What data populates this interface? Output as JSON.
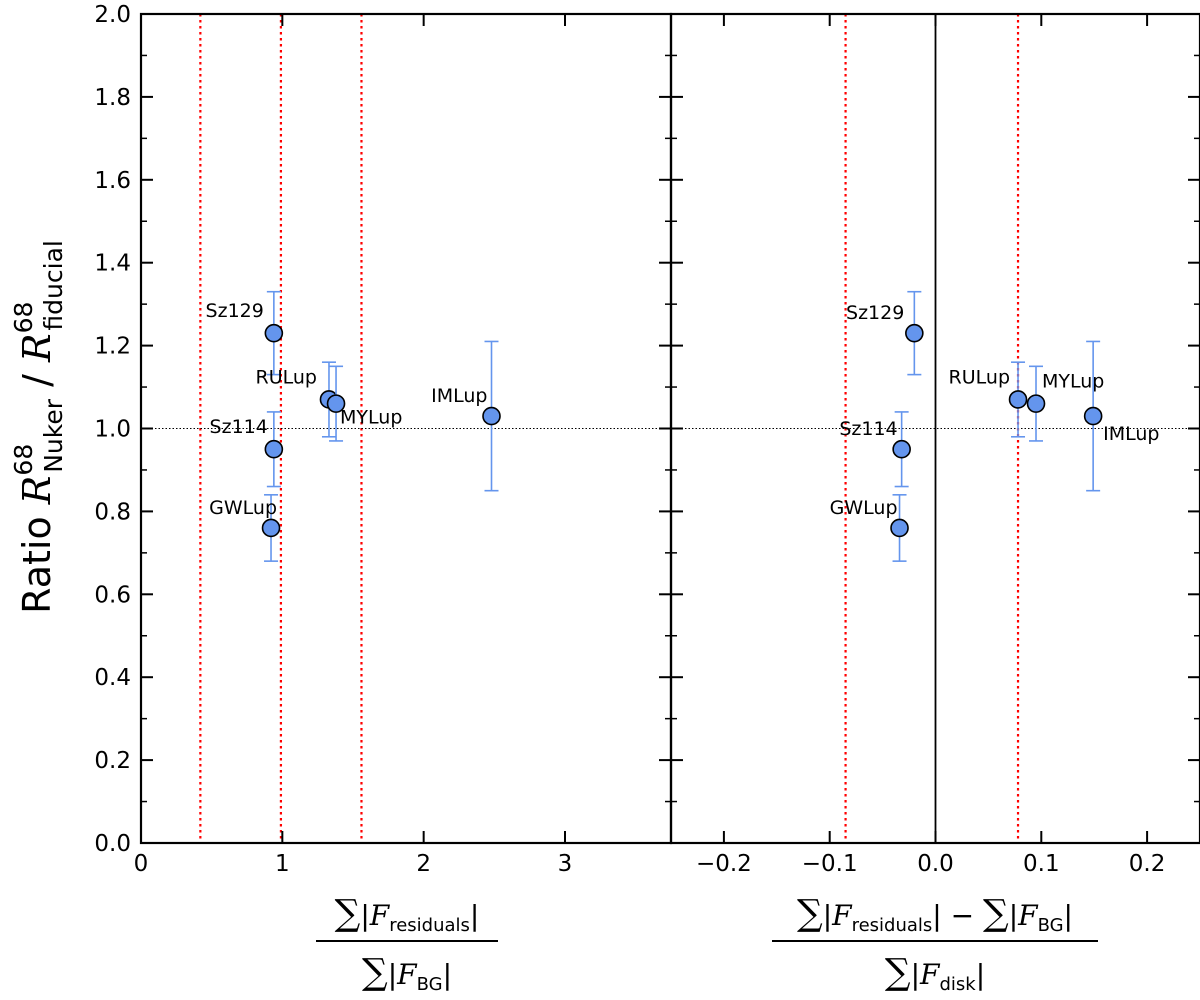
{
  "chart_data": [
    {
      "type": "scatter",
      "panel": "left",
      "ylabel_main": "Ratio ",
      "ylabel_num_var": "R",
      "ylabel_num_sup": "68",
      "ylabel_num_sub": "Nuker",
      "ylabel_sep": " / ",
      "ylabel_den_var": "R",
      "ylabel_den_sup": "68",
      "ylabel_den_sub": "fiducial",
      "xlabel": {
        "num_sum": "∑",
        "num_bar_l": "|",
        "num_var": "F",
        "num_sub": "residuals",
        "num_bar_r": "|",
        "den_sum": "∑",
        "den_bar_l": "|",
        "den_var": "F",
        "den_sub": "BG",
        "den_bar_r": "|"
      },
      "xlim": [
        0,
        3.75
      ],
      "ylim": [
        0,
        2.0
      ],
      "xticks": [
        0,
        1,
        2,
        3
      ],
      "xtick_labels": [
        "0",
        "1",
        "2",
        "3"
      ],
      "yticks": [
        0.0,
        0.2,
        0.4,
        0.6,
        0.8,
        1.0,
        1.2,
        1.4,
        1.6,
        1.8,
        2.0
      ],
      "ytick_labels": [
        "0.0",
        "0.2",
        "0.4",
        "0.6",
        "0.8",
        "1.0",
        "1.2",
        "1.4",
        "1.6",
        "1.8",
        "2.0"
      ],
      "vlines_dotted_red": [
        0.42,
        0.99,
        1.56
      ],
      "hline_dotted": 1.0,
      "points": [
        {
          "name": "Sz129",
          "x": 0.94,
          "y": 1.23,
          "err_lo": 0.1,
          "err_hi": 0.1,
          "label_anchor": "end",
          "label_dx": -10,
          "label_dy": -16
        },
        {
          "name": "RULup",
          "x": 1.33,
          "y": 1.07,
          "err_lo": 0.09,
          "err_hi": 0.09,
          "label_anchor": "end",
          "label_dx": -12,
          "label_dy": -16
        },
        {
          "name": "MYLup",
          "x": 1.38,
          "y": 1.06,
          "err_lo": 0.09,
          "err_hi": 0.09,
          "label_anchor": "start",
          "label_dx": 4,
          "label_dy": 20
        },
        {
          "name": "IMLup",
          "x": 2.48,
          "y": 1.03,
          "err_lo": 0.18,
          "err_hi": 0.18,
          "label_anchor": "end",
          "label_dx": -4,
          "label_dy": -14
        },
        {
          "name": "Sz114",
          "x": 0.94,
          "y": 0.95,
          "err_lo": 0.09,
          "err_hi": 0.09,
          "label_anchor": "end",
          "label_dx": -6,
          "label_dy": -16
        },
        {
          "name": "GWLup",
          "x": 0.92,
          "y": 0.76,
          "err_lo": 0.08,
          "err_hi": 0.08,
          "label_anchor": "end",
          "label_dx": 6,
          "label_dy": -14
        }
      ]
    },
    {
      "type": "scatter",
      "panel": "right",
      "xlabel": {
        "num_sum1": "∑",
        "num_bar_l1": "|",
        "num_var1": "F",
        "num_sub1": "residuals",
        "num_bar_r1": "|",
        "num_minus": " − ",
        "num_sum2": "∑",
        "num_bar_l2": "|",
        "num_var2": "F",
        "num_sub2": "BG",
        "num_bar_r2": "|",
        "den_sum": "∑",
        "den_bar_l": "|",
        "den_var": "F",
        "den_sub": "disk",
        "den_bar_r": "|"
      },
      "xlim": [
        -0.25,
        0.25
      ],
      "ylim": [
        0,
        2.0
      ],
      "xticks": [
        -0.2,
        -0.1,
        0.0,
        0.1,
        0.2
      ],
      "xtick_labels": [
        "−0.2",
        "−0.1",
        "0.0",
        "0.1",
        "0.2"
      ],
      "vlines_dotted_red": [
        -0.085,
        0.078
      ],
      "vline_solid": 0.0,
      "hline_dotted": 1.0,
      "points": [
        {
          "name": "Sz129",
          "x": -0.02,
          "y": 1.23,
          "err_lo": 0.1,
          "err_hi": 0.1,
          "label_anchor": "end",
          "label_dx": -10,
          "label_dy": -14
        },
        {
          "name": "RULup",
          "x": 0.078,
          "y": 1.07,
          "err_lo": 0.09,
          "err_hi": 0.09,
          "label_anchor": "end",
          "label_dx": -8,
          "label_dy": -16
        },
        {
          "name": "MYLup",
          "x": 0.095,
          "y": 1.06,
          "err_lo": 0.09,
          "err_hi": 0.09,
          "label_anchor": "start",
          "label_dx": 6,
          "label_dy": -16
        },
        {
          "name": "IMLup",
          "x": 0.149,
          "y": 1.03,
          "err_lo": 0.18,
          "err_hi": 0.18,
          "label_anchor": "start",
          "label_dx": 10,
          "label_dy": 24
        },
        {
          "name": "Sz114",
          "x": -0.032,
          "y": 0.95,
          "err_lo": 0.09,
          "err_hi": 0.09,
          "label_anchor": "end",
          "label_dx": -4,
          "label_dy": -14
        },
        {
          "name": "GWLup",
          "x": -0.034,
          "y": 0.76,
          "err_lo": 0.08,
          "err_hi": 0.08,
          "label_anchor": "end",
          "label_dx": -2,
          "label_dy": -14
        }
      ]
    }
  ],
  "colors": {
    "marker_fill": "#6495ed",
    "errorbar": "#6495ed",
    "vline_red": "#ff0000",
    "axes": "#000000"
  }
}
